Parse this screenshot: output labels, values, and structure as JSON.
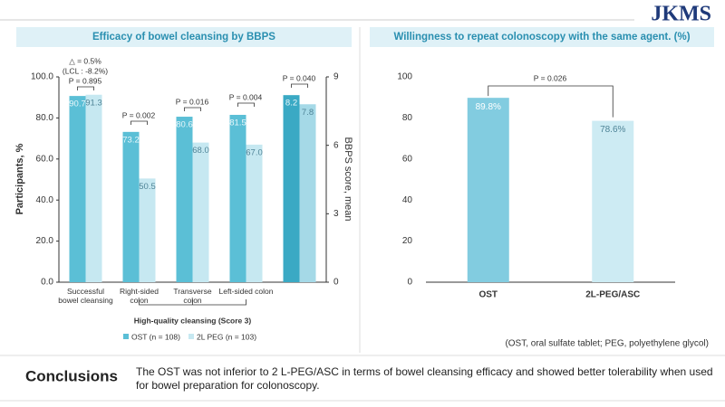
{
  "logo": "JKMS",
  "chart_data": [
    {
      "type": "bar",
      "title": "Efficacy of bowel cleansing by BBPS",
      "ylabel": "Participants, %",
      "y2label": "BBPS score, mean",
      "categories": [
        "Successful bowel cleansing",
        "Right-sided colon",
        "Transverse colon",
        "Left-sided colon",
        null
      ],
      "group_label": "High-quality cleansing (Score 3)",
      "series": [
        {
          "name": "OST (n = 108)",
          "color": "#5bbfd6",
          "values": [
            90.7,
            73.2,
            80.6,
            81.5,
            null
          ],
          "value_labels": [
            "90.7",
            "73.2",
            "80.6",
            "81.5",
            null
          ]
        },
        {
          "name": "2L PEG (n = 103)",
          "color": "#c6e8f1",
          "values": [
            91.3,
            50.5,
            68.0,
            67.0,
            null
          ],
          "value_labels": [
            "91.3",
            "50.5",
            "68.0",
            "67.0",
            null
          ]
        },
        {
          "color": "#3aa9c4",
          "axis": "y2",
          "values": [
            null,
            null,
            null,
            null,
            8.2
          ]
        },
        {
          "color": "#a5d9e7",
          "axis": "y2",
          "values": [
            null,
            null,
            null,
            null,
            7.8
          ]
        }
      ],
      "ylim": [
        0,
        100
      ],
      "yticks": [
        {
          "value": 0,
          "label": "0.0"
        },
        {
          "value": 20,
          "label": "20.0"
        },
        {
          "value": 40,
          "label": "40.0"
        },
        {
          "value": 60,
          "label": "60.0"
        },
        {
          "value": 80,
          "label": "80.0"
        },
        {
          "value": 100,
          "label": "100.0"
        }
      ],
      "y2lim": [
        0,
        9
      ],
      "y2ticks": [
        0,
        3,
        6,
        9
      ],
      "annotations": [
        "△ = 0.5%",
        "(LCL : -8.2%)",
        "P = 0.895",
        "P = 0.002",
        "P = 0.016",
        "P = 0.004",
        "P = 0.040"
      ]
    },
    {
      "type": "bar",
      "title": "Willingness to repeat colonoscopy with the same agent. (%)",
      "categories": [
        "OST",
        "2L-PEG/ASC"
      ],
      "values": [
        89.8,
        78.6
      ],
      "value_labels": [
        "89.8%",
        "78.6%"
      ],
      "colors": [
        "#82cce0",
        "#cdebf3"
      ],
      "ylim": [
        0,
        100
      ],
      "yticks": [
        0,
        20,
        40,
        60,
        80,
        100
      ],
      "annotations": [
        "P = 0.026"
      ]
    }
  ],
  "footnote": "(OST, oral sulfate tablet; PEG, polyethylene glycol)",
  "conclusions": {
    "heading": "Conclusions",
    "text": "The OST was not inferior to 2 L-PEG/ASC in terms of bowel cleansing efficacy and showed better tolerability when used for bowel preparation for colonoscopy."
  }
}
